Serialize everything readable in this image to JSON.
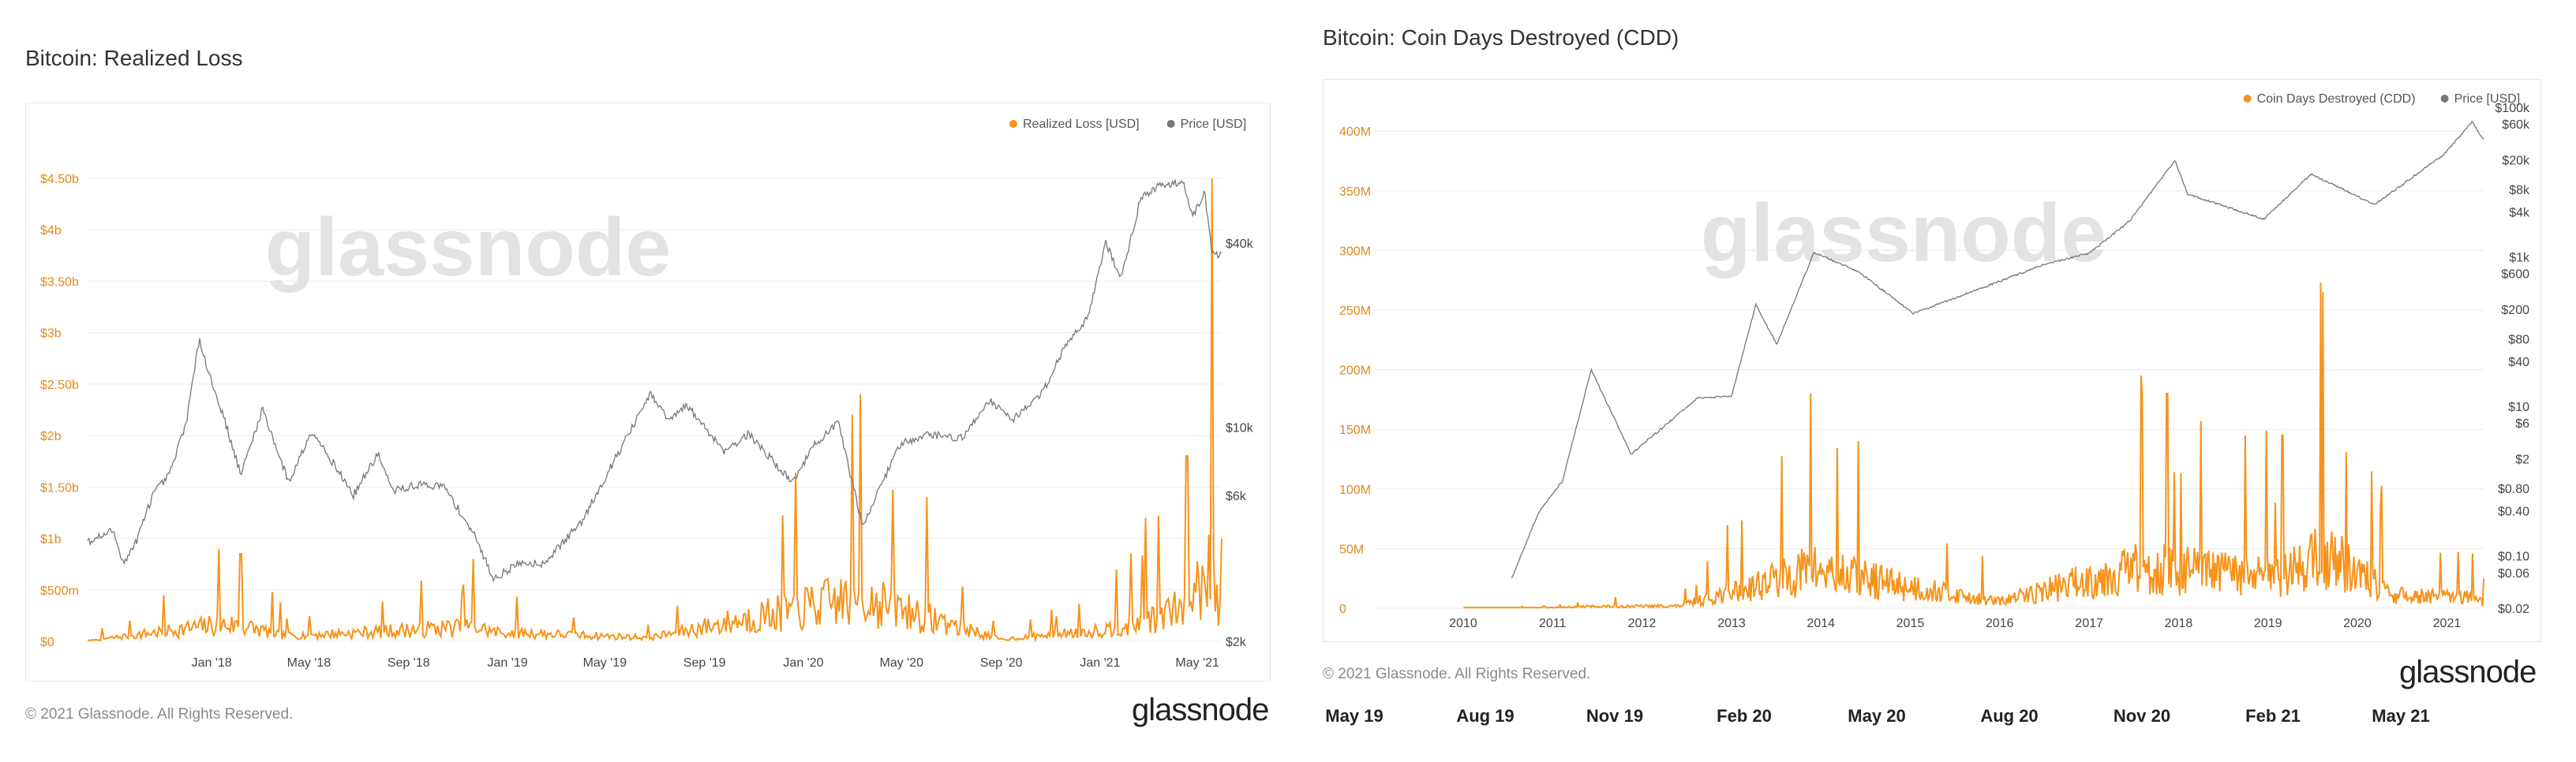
{
  "page": {
    "copyright": "© 2021 Glassnode. All Rights Reserved.",
    "brand": "glassnode",
    "watermark": "glassnode"
  },
  "colors": {
    "orange": "#f7931a",
    "price": "#777777",
    "tick_orange": "#e08a1e",
    "tick_gray": "#444444"
  },
  "bottom_timeline": [
    "May 19",
    "Aug 19",
    "Nov 19",
    "Feb 20",
    "May 20",
    "Aug 20",
    "Nov 20",
    "Feb 21",
    "May 21"
  ],
  "chart_data": [
    {
      "type": "line",
      "title": "Bitcoin: Realized Loss",
      "legend_position": "top-right",
      "legend": [
        "Realized Loss [USD]",
        "Price [USD]"
      ],
      "x_ticks": [
        "Jan '18",
        "May '18",
        "Sep '18",
        "Jan '19",
        "May '19",
        "Sep '19",
        "Jan '20",
        "May '20",
        "Sep '20",
        "Jan '21",
        "May '21"
      ],
      "y_left": {
        "ticks": [
          "$0",
          "$500m",
          "$1b",
          "$1.50b",
          "$2b",
          "$2.50b",
          "$3b",
          "$3.50b",
          "$4b",
          "$4.50b"
        ],
        "range": [
          0,
          4500000000.0
        ]
      },
      "y_right": {
        "scale": "log",
        "ticks": [
          "$2k",
          "$6k",
          "$10k",
          "$40k"
        ],
        "range": [
          2000,
          65000
        ]
      },
      "grid": true,
      "series": [
        {
          "name": "Price [USD]",
          "axis": "right",
          "color": "#777777",
          "points": [
            [
              "2017-08-01",
              4200
            ],
            [
              "2017-09-01",
              4600
            ],
            [
              "2017-09-15",
              3600
            ],
            [
              "2017-10-01",
              4300
            ],
            [
              "2017-10-20",
              6000
            ],
            [
              "2017-11-10",
              7000
            ],
            [
              "2017-12-01",
              10500
            ],
            [
              "2017-12-17",
              19500
            ],
            [
              "2018-01-01",
              14000
            ],
            [
              "2018-01-15",
              11000
            ],
            [
              "2018-02-06",
              7000
            ],
            [
              "2018-03-05",
              11500
            ],
            [
              "2018-04-06",
              6600
            ],
            [
              "2018-05-05",
              9800
            ],
            [
              "2018-06-25",
              6000
            ],
            [
              "2018-07-25",
              8200
            ],
            [
              "2018-08-12",
              6200
            ],
            [
              "2018-09-15",
              6500
            ],
            [
              "2018-10-15",
              6400
            ],
            [
              "2018-11-20",
              4500
            ],
            [
              "2018-12-15",
              3200
            ],
            [
              "2019-01-15",
              3600
            ],
            [
              "2019-02-15",
              3600
            ],
            [
              "2019-04-02",
              4900
            ],
            [
              "2019-05-15",
              8000
            ],
            [
              "2019-06-26",
              12800
            ],
            [
              "2019-07-20",
              10500
            ],
            [
              "2019-08-10",
              11800
            ],
            [
              "2019-09-25",
              8400
            ],
            [
              "2019-10-26",
              9500
            ],
            [
              "2019-12-18",
              6600
            ],
            [
              "2020-01-15",
              8800
            ],
            [
              "2020-02-13",
              10300
            ],
            [
              "2020-03-12",
              5000
            ],
            [
              "2020-03-16",
              4900
            ],
            [
              "2020-04-29",
              8800
            ],
            [
              "2020-06-01",
              9500
            ],
            [
              "2020-07-15",
              9200
            ],
            [
              "2020-08-17",
              12300
            ],
            [
              "2020-09-15",
              10600
            ],
            [
              "2020-10-21",
              12900
            ],
            [
              "2020-11-20",
              18600
            ],
            [
              "2020-12-17",
              23000
            ],
            [
              "2021-01-08",
              40000
            ],
            [
              "2021-01-27",
              30500
            ],
            [
              "2021-02-20",
              56000
            ],
            [
              "2021-03-13",
              61000
            ],
            [
              "2021-04-14",
              63500
            ],
            [
              "2021-04-25",
              49000
            ],
            [
              "2021-05-10",
              58000
            ],
            [
              "2021-05-19",
              37000
            ],
            [
              "2021-05-31",
              36500
            ]
          ]
        },
        {
          "name": "Realized Loss [USD]",
          "axis": "left",
          "color": "#f7931a",
          "points": [
            [
              "2017-08-01",
              20000000.0
            ],
            [
              "2018-01-10",
              900000000.0
            ],
            [
              "2018-02-06",
              850000000.0
            ],
            [
              "2018-04-01",
              300000000.0
            ],
            [
              "2018-06-25",
              450000000.0
            ],
            [
              "2018-11-20",
              800000000.0
            ],
            [
              "2018-12-15",
              500000000.0
            ],
            [
              "2019-06-26",
              200000000.0
            ],
            [
              "2020-03-12",
              2400000000.0
            ],
            [
              "2020-09-01",
              100000000.0
            ],
            [
              "2021-01-21",
              700000000.0
            ],
            [
              "2021-02-26",
              1200000000.0
            ],
            [
              "2021-04-18",
              1800000000.0
            ],
            [
              "2021-05-19",
              4500000000.0
            ],
            [
              "2021-05-31",
              1000000000.0
            ]
          ]
        }
      ]
    },
    {
      "type": "line",
      "title": "Bitcoin: Coin Days Destroyed (CDD)",
      "legend_position": "top-right",
      "legend": [
        "Coin Days Destroyed (CDD)",
        "Price [USD]"
      ],
      "x_ticks": [
        "2010",
        "2011",
        "2012",
        "2013",
        "2014",
        "2015",
        "2016",
        "2017",
        "2018",
        "2019",
        "2020",
        "2021"
      ],
      "y_left": {
        "ticks": [
          "0",
          "50M",
          "100M",
          "150M",
          "200M",
          "250M",
          "300M",
          "350M",
          "400M"
        ],
        "range": [
          0,
          420000000.0
        ]
      },
      "y_right": {
        "scale": "log",
        "ticks": [
          "$0.02",
          "$0.06",
          "$0.10",
          "$0.40",
          "$0.80",
          "$2",
          "$6",
          "$10",
          "$40",
          "$80",
          "$200",
          "$600",
          "$1k",
          "$4k",
          "$8k",
          "$20k",
          "$60k",
          "$100k"
        ],
        "range": [
          0.02,
          100000
        ]
      },
      "grid": true,
      "series": [
        {
          "name": "Price [USD]",
          "axis": "right",
          "color": "#777777",
          "points": [
            [
              "2010-07-18",
              0.05
            ],
            [
              "2010-11-06",
              0.39
            ],
            [
              "2011-02-10",
              1.0
            ],
            [
              "2011-06-08",
              31
            ],
            [
              "2011-11-18",
              2.3
            ],
            [
              "2012-08-16",
              13
            ],
            [
              "2012-12-31",
              13.5
            ],
            [
              "2013-04-10",
              230
            ],
            [
              "2013-07-05",
              68
            ],
            [
              "2013-12-04",
              1150
            ],
            [
              "2014-06-01",
              640
            ],
            [
              "2015-01-14",
              175
            ],
            [
              "2015-11-04",
              400
            ],
            [
              "2016-06-18",
              760
            ],
            [
              "2017-01-04",
              1130
            ],
            [
              "2017-06-12",
              2950
            ],
            [
              "2017-12-17",
              19500
            ],
            [
              "2018-02-06",
              6900
            ],
            [
              "2018-12-15",
              3200
            ],
            [
              "2019-06-26",
              12800
            ],
            [
              "2020-03-12",
              5000
            ],
            [
              "2020-12-17",
              23000
            ],
            [
              "2021-04-14",
              63500
            ],
            [
              "2021-05-31",
              36500
            ]
          ]
        },
        {
          "name": "Coin Days Destroyed (CDD)",
          "axis": "left",
          "color": "#f7931a",
          "points": [
            [
              "2010-01-01",
              200000.0
            ],
            [
              "2010-12-01",
              2000000.0
            ],
            [
              "2011-06-01",
              8000000.0
            ],
            [
              "2012-06-01",
              10000000.0
            ],
            [
              "2013-11-20",
              180000000.0
            ],
            [
              "2014-06-01",
              140000000.0
            ],
            [
              "2016-01-01",
              30000000.0
            ],
            [
              "2017-08-01",
              195000000.0
            ],
            [
              "2017-11-15",
              180000000.0
            ],
            [
              "2019-03-01",
              145000000.0
            ],
            [
              "2019-08-12",
              265000000.0
            ],
            [
              "2020-06-01",
              60000000.0
            ],
            [
              "2021-04-01",
              50000000.0
            ],
            [
              "2021-05-31",
              25000000.0
            ]
          ]
        }
      ]
    }
  ]
}
